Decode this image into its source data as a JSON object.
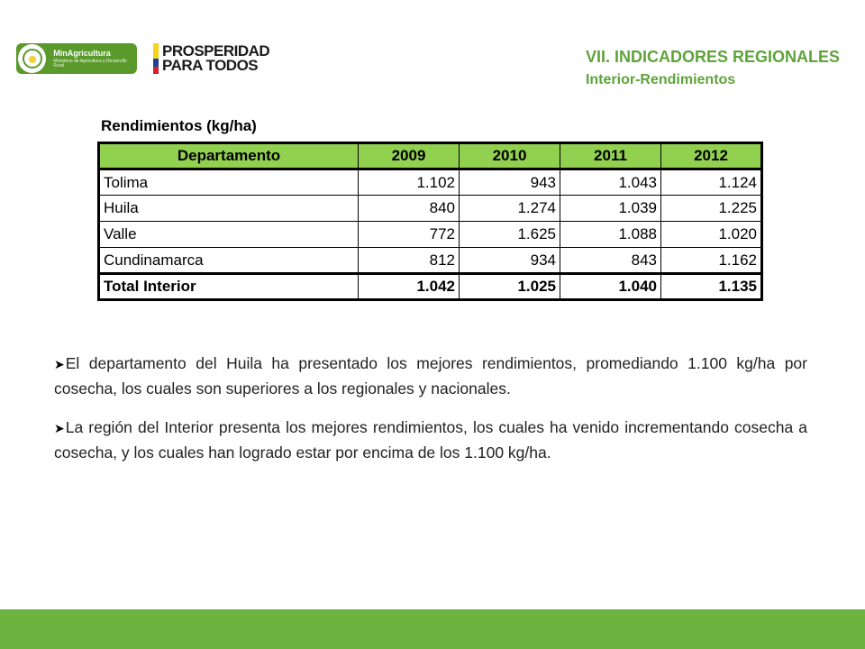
{
  "logos": {
    "ministry_name": "MinAgricultura",
    "ministry_sub": "Ministerio de Agricultura y Desarrollo Rural",
    "prosperidad_line1": "PROSPERIDAD",
    "prosperidad_line2": "PARA TODOS"
  },
  "header": {
    "title": "VII. INDICADORES REGIONALES",
    "subtitle": "Interior-Rendimientos"
  },
  "table": {
    "caption": "Rendimientos (kg/ha)",
    "columns": [
      "Departamento",
      "2009",
      "2010",
      "2011",
      "2012"
    ],
    "rows": [
      [
        "Tolima",
        "1.102",
        "943",
        "1.043",
        "1.124"
      ],
      [
        "Huila",
        "840",
        "1.274",
        "1.039",
        "1.225"
      ],
      [
        "Valle",
        "772",
        "1.625",
        "1.088",
        "1.020"
      ],
      [
        "Cundinamarca",
        "812",
        "934",
        "843",
        "1.162"
      ]
    ],
    "total": [
      "Total Interior",
      "1.042",
      "1.025",
      "1.040",
      "1.135"
    ]
  },
  "bullets": [
    "El departamento del Huila ha presentado los mejores rendimientos, promediando 1.100 kg/ha por cosecha, los cuales son superiores a los regionales y nacionales.",
    "La región del Interior presenta los mejores rendimientos, los cuales ha venido incrementando cosecha a cosecha, y los cuales han logrado estar por encima de los 1.100 kg/ha."
  ],
  "colors": {
    "accent": "#5fa33a",
    "header_fill": "#92d050",
    "footer": "#6db33f"
  }
}
